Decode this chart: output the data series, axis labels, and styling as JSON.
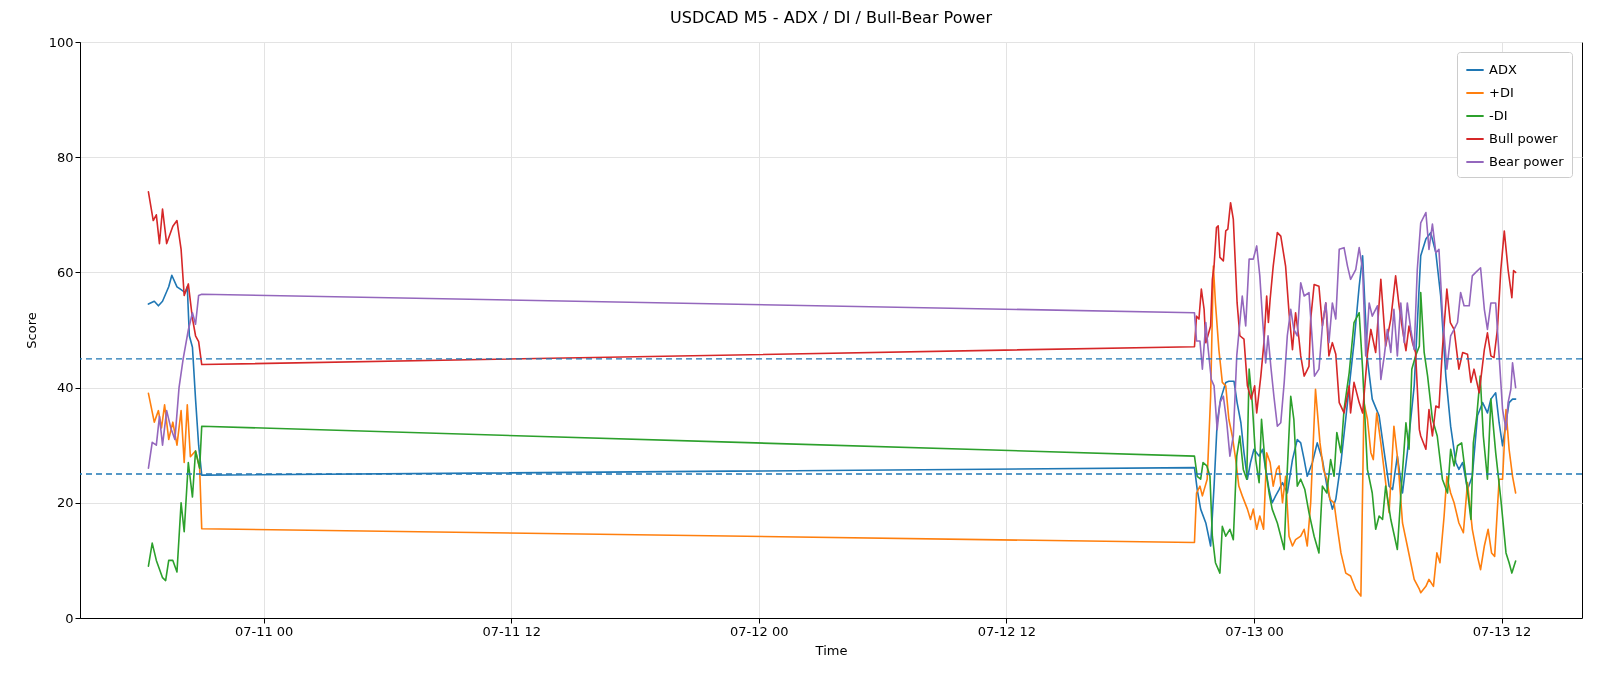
{
  "chart_data": {
    "type": "line",
    "title": "USDCAD M5 - ADX / DI / Bull-Bear Power",
    "xlabel": "Time",
    "ylabel": "Score",
    "xlim": [
      "--07-10T15:06",
      "--07-13T15:54"
    ],
    "xticks": [
      {
        "value": "--07-11T00:00",
        "label": "07-11 00"
      },
      {
        "value": "--07-11T12:00",
        "label": "07-11 12"
      },
      {
        "value": "--07-12T00:00",
        "label": "07-12 00"
      },
      {
        "value": "--07-12T12:00",
        "label": "07-12 12"
      },
      {
        "value": "--07-13T00:00",
        "label": "07-13 00"
      },
      {
        "value": "--07-13T12:00",
        "label": "07-13 12"
      }
    ],
    "ylim": [
      0,
      100
    ],
    "yticks": [
      0,
      20,
      40,
      60,
      80,
      100
    ],
    "grid": true,
    "legend": "top right",
    "line_style": "solid",
    "ref_lines": [
      {
        "axis": "y",
        "value": 45,
        "color": "#1f77b4",
        "line_style": "dashed"
      },
      {
        "axis": "y",
        "value": 25,
        "color": "#1f77b4",
        "line_style": "dashed"
      }
    ],
    "series": [
      {
        "name": "ADX",
        "color": "#1f77b4",
        "x": [
          "--07-10T18:25",
          "--07-10T18:42",
          "--07-10T18:54",
          "--07-10T19:06",
          "--07-10T19:24",
          "--07-10T19:33",
          "--07-10T19:48",
          "--07-10T20:00",
          "--07-10T20:12",
          "--07-10T20:18",
          "--07-10T20:24",
          "--07-10T20:33",
          "--07-10T20:42",
          "--07-10T20:51",
          "--07-10T21:00",
          "--07-12T21:07",
          "--07-12T21:15",
          "--07-12T21:25",
          "--07-12T21:40",
          "--07-12T21:54",
          "--07-12T22:04",
          "--07-12T22:13",
          "--07-12T22:23",
          "--07-12T22:38",
          "--07-12T22:47",
          "--07-12T23:02",
          "--07-12T23:11",
          "--07-12T23:22",
          "--07-12T23:31",
          "--07-12T23:41",
          "--07-12T23:50",
          "--07-13T00:00",
          "--07-13T00:15",
          "--07-13T00:25",
          "--07-13T00:34",
          "--07-13T00:44",
          "--07-13T00:53",
          "--07-13T01:03",
          "--07-13T01:13",
          "--07-13T01:23",
          "--07-13T01:37",
          "--07-13T01:52",
          "--07-13T02:06",
          "--07-13T02:16",
          "--07-13T02:26",
          "--07-13T02:35",
          "--07-13T02:50",
          "--07-13T03:04",
          "--07-13T03:19",
          "--07-13T03:34",
          "--07-13T03:48",
          "--07-13T03:58",
          "--07-13T04:13",
          "--07-13T04:32",
          "--07-13T04:51",
          "--07-13T05:06",
          "--07-13T05:16",
          "--07-13T05:30",
          "--07-13T05:44",
          "--07-13T06:04",
          "--07-13T06:19",
          "--07-13T06:33",
          "--07-13T06:43",
          "--07-13T06:57",
          "--07-13T07:12",
          "--07-13T07:26",
          "--07-13T07:46",
          "--07-13T08:05",
          "--07-13T08:20",
          "--07-13T08:34",
          "--07-13T08:49",
          "--07-13T09:03",
          "--07-13T09:18",
          "--07-13T09:32",
          "--07-13T09:47",
          "--07-13T09:56",
          "--07-13T10:07",
          "--07-13T10:21",
          "--07-13T10:35",
          "--07-13T10:50",
          "--07-13T11:05",
          "--07-13T11:19",
          "--07-13T11:29",
          "--07-13T11:43",
          "--07-13T11:53",
          "--07-13T12:03",
          "--07-13T12:13",
          "--07-13T12:22",
          "--07-13T12:32",
          "--07-13T12:41"
        ],
        "values": [
          54.5,
          55,
          54.2,
          55,
          57.5,
          59.5,
          57.5,
          57,
          56.5,
          57.5,
          49,
          47,
          38,
          30,
          24.8,
          26.1,
          22.3,
          18.9,
          16.5,
          12.5,
          22.9,
          33.9,
          38.0,
          40.9,
          41.1,
          41.1,
          37.4,
          33.9,
          28.7,
          24.1,
          27.0,
          29.3,
          28.1,
          29.3,
          25.8,
          22.3,
          20.0,
          21.2,
          22.3,
          23.5,
          21.7,
          27.5,
          31.0,
          30.4,
          27.5,
          24.6,
          27.0,
          30.4,
          27.5,
          22.3,
          18.9,
          20.6,
          27.0,
          37.4,
          47.8,
          57.6,
          62.9,
          44.9,
          38.0,
          35.1,
          28.7,
          22.9,
          22.3,
          28.1,
          21.7,
          28.7,
          40.3,
          62.9,
          65.8,
          66.9,
          63.4,
          55.9,
          42.0,
          33.3,
          27.0,
          25.8,
          27.0,
          22.3,
          24.6,
          35.1,
          37.4,
          35.6,
          38.0,
          39.1,
          33.9,
          29.9,
          33.9,
          37.4,
          38.0,
          38.0
        ]
      },
      {
        "name": "+DI",
        "color": "#ff7f0e",
        "x": [
          "--07-10T18:25",
          "--07-10T18:42",
          "--07-10T18:54",
          "--07-10T19:03",
          "--07-10T19:12",
          "--07-10T19:24",
          "--07-10T19:36",
          "--07-10T19:48",
          "--07-10T20:00",
          "--07-10T20:09",
          "--07-10T20:18",
          "--07-10T20:27",
          "--07-10T20:42",
          "--07-10T20:54",
          "--07-10T21:00",
          "--07-12T21:07",
          "--07-12T21:13",
          "--07-12T21:23",
          "--07-12T21:30",
          "--07-12T21:44",
          "--07-12T21:54",
          "--07-12T22:02",
          "--07-12T22:08",
          "--07-12T22:18",
          "--07-12T22:28",
          "--07-12T22:38",
          "--07-12T22:47",
          "--07-12T22:57",
          "--07-12T23:07",
          "--07-12T23:16",
          "--07-12T23:26",
          "--07-12T23:41",
          "--07-12T23:50",
          "--07-12T23:58",
          "--07-13T00:08",
          "--07-13T00:17",
          "--07-13T00:28",
          "--07-13T00:37",
          "--07-13T00:47",
          "--07-13T00:56",
          "--07-13T01:06",
          "--07-13T01:13",
          "--07-13T01:23",
          "--07-13T01:32",
          "--07-13T01:42",
          "--07-13T01:52",
          "--07-13T02:01",
          "--07-13T02:16",
          "--07-13T02:26",
          "--07-13T02:35",
          "--07-13T02:45",
          "--07-13T02:59",
          "--07-13T03:12",
          "--07-13T03:22",
          "--07-13T03:32",
          "--07-13T03:41",
          "--07-13T03:53",
          "--07-13T04:02",
          "--07-13T04:13",
          "--07-13T04:27",
          "--07-13T04:41",
          "--07-13T04:56",
          "--07-13T05:11",
          "--07-13T05:20",
          "--07-13T05:30",
          "--07-13T05:40",
          "--07-13T05:47",
          "--07-13T05:57",
          "--07-13T06:09",
          "--07-13T06:23",
          "--07-13T06:33",
          "--07-13T06:47",
          "--07-13T06:59",
          "--07-13T07:12",
          "--07-13T07:26",
          "--07-13T07:46",
          "--07-13T08:01",
          "--07-13T08:05",
          "--07-13T08:20",
          "--07-13T08:29",
          "--07-13T08:42",
          "--07-13T08:52",
          "--07-13T09:01",
          "--07-13T09:13",
          "--07-13T09:21",
          "--07-13T09:32",
          "--07-13T09:42",
          "--07-13T09:56",
          "--07-13T10:09",
          "--07-13T10:21",
          "--07-13T10:35",
          "--07-13T10:50",
          "--07-13T10:59",
          "--07-13T11:10",
          "--07-13T11:21",
          "--07-13T11:31",
          "--07-13T11:40",
          "--07-13T11:53",
          "--07-13T12:03",
          "--07-13T12:13",
          "--07-13T12:22",
          "--07-13T12:32",
          "--07-13T12:41"
        ],
        "values": [
          39,
          34,
          36,
          33,
          37,
          31,
          34,
          30,
          36,
          27,
          37,
          28,
          29,
          26,
          15.5,
          13.1,
          21.7,
          22.9,
          21.2,
          24.1,
          38.5,
          61.1,
          54.7,
          46.6,
          40.9,
          40.3,
          34.5,
          31.6,
          27.5,
          22.9,
          21.2,
          18.9,
          17.1,
          18.9,
          15.4,
          17.7,
          15.4,
          28.7,
          27.0,
          22.9,
          25.8,
          26.4,
          20.0,
          24.6,
          14.2,
          12.5,
          13.6,
          14.2,
          15.4,
          12.5,
          20.0,
          39.7,
          30.4,
          25.8,
          24.1,
          20.6,
          20.0,
          15.9,
          11.3,
          7.8,
          7.3,
          5.0,
          3.8,
          37.4,
          34.5,
          28.7,
          27.5,
          35.6,
          30.4,
          23.5,
          18.3,
          33.3,
          27.0,
          16.5,
          12.5,
          6.7,
          5.0,
          4.4,
          5.5,
          6.7,
          5.5,
          11.3,
          9.6,
          17.7,
          24.6,
          21.7,
          20.0,
          16.5,
          14.8,
          23.5,
          15.4,
          10.7,
          8.4,
          12.5,
          15.4,
          11.3,
          10.7,
          24.1,
          24.1,
          36.2,
          29.3,
          24.6,
          21.7
        ]
      },
      {
        "name": "-DI",
        "color": "#2ca02c",
        "x": [
          "--07-10T18:25",
          "--07-10T18:36",
          "--07-10T18:48",
          "--07-10T19:06",
          "--07-10T19:15",
          "--07-10T19:24",
          "--07-10T19:36",
          "--07-10T19:48",
          "--07-10T20:00",
          "--07-10T20:09",
          "--07-10T20:21",
          "--07-10T20:33",
          "--07-10T20:42",
          "--07-10T20:54",
          "--07-10T21:00",
          "--07-12T21:07",
          "--07-12T21:15",
          "--07-12T21:25",
          "--07-12T21:32",
          "--07-12T21:43",
          "--07-12T21:52",
          "--07-12T21:59",
          "--07-12T22:08",
          "--07-12T22:21",
          "--07-12T22:28",
          "--07-12T22:38",
          "--07-12T22:50",
          "--07-12T23:00",
          "--07-12T23:10",
          "--07-12T23:19",
          "--07-12T23:29",
          "--07-12T23:39",
          "--07-12T23:46",
          "--07-12T23:55",
          "--07-13T00:05",
          "--07-13T00:15",
          "--07-13T00:22",
          "--07-13T00:34",
          "--07-13T00:44",
          "--07-13T00:53",
          "--07-13T01:08",
          "--07-13T01:18",
          "--07-13T01:28",
          "--07-13T01:37",
          "--07-13T01:47",
          "--07-13T01:56",
          "--07-13T02:06",
          "--07-13T02:16",
          "--07-13T02:28",
          "--07-13T02:40",
          "--07-13T02:55",
          "--07-13T03:09",
          "--07-13T03:19",
          "--07-13T03:32",
          "--07-13T03:43",
          "--07-13T03:53",
          "--07-13T04:01",
          "--07-13T04:13",
          "--07-13T04:22",
          "--07-13T04:37",
          "--07-13T04:51",
          "--07-13T05:06",
          "--07-13T05:16",
          "--07-13T05:30",
          "--07-13T05:44",
          "--07-13T05:54",
          "--07-13T06:04",
          "--07-13T06:14",
          "--07-13T06:23",
          "--07-13T06:38",
          "--07-13T06:57",
          "--07-13T07:07",
          "--07-13T07:22",
          "--07-13T07:31",
          "--07-13T07:39",
          "--07-13T07:50",
          "--07-13T08:01",
          "--07-13T08:05",
          "--07-13T08:15",
          "--07-13T08:25",
          "--07-13T08:39",
          "--07-13T08:53",
          "--07-13T09:08",
          "--07-13T09:23",
          "--07-13T09:32",
          "--07-13T09:42",
          "--07-13T09:52",
          "--07-13T10:04",
          "--07-13T10:16",
          "--07-13T10:31",
          "--07-13T10:38",
          "--07-13T10:48",
          "--07-13T10:58",
          "--07-13T11:07",
          "--07-13T11:19",
          "--07-13T11:29",
          "--07-13T11:43",
          "--07-13T11:58",
          "--07-13T12:13",
          "--07-13T12:22",
          "--07-13T12:30",
          "--07-13T12:41"
        ],
        "values": [
          9,
          13,
          10,
          7,
          6.5,
          10,
          10,
          8,
          20,
          15,
          27,
          21,
          29,
          26,
          33.3,
          28.1,
          24.6,
          24.1,
          27.0,
          26.4,
          24.6,
          14.2,
          9.6,
          7.8,
          15.9,
          14.2,
          15.4,
          13.6,
          28.1,
          31.6,
          25.8,
          24.1,
          43.2,
          37.4,
          27.5,
          23.5,
          34.5,
          25.8,
          21.7,
          18.9,
          16.5,
          14.2,
          11.9,
          25.8,
          38.5,
          34.5,
          22.9,
          24.1,
          22.3,
          18.3,
          14.2,
          11.3,
          22.9,
          21.7,
          27.5,
          24.6,
          32.2,
          28.7,
          36.2,
          42.6,
          51.3,
          53.0,
          43.2,
          25.8,
          21.7,
          15.4,
          17.7,
          17.1,
          22.9,
          17.1,
          11.9,
          21.2,
          33.9,
          29.3,
          43.2,
          45.5,
          47.2,
          56.5,
          46.1,
          42.0,
          34.5,
          31.6,
          24.1,
          21.7,
          29.3,
          26.4,
          29.9,
          30.4,
          24.6,
          17.1,
          30.4,
          35.1,
          42.0,
          31.6,
          24.1,
          38.0,
          28.7,
          20.6,
          11.3,
          9.6,
          7.8,
          9.9
        ]
      },
      {
        "name": "Bull power",
        "color": "#d62728",
        "x": [
          "--07-10T18:25",
          "--07-10T18:39",
          "--07-10T18:48",
          "--07-10T18:57",
          "--07-10T19:06",
          "--07-10T19:18",
          "--07-10T19:36",
          "--07-10T19:48",
          "--07-10T20:00",
          "--07-10T20:09",
          "--07-10T20:21",
          "--07-10T20:33",
          "--07-10T20:42",
          "--07-10T20:51",
          "--07-10T21:00",
          "--07-12T21:07",
          "--07-12T21:13",
          "--07-12T21:20",
          "--07-12T21:27",
          "--07-12T21:35",
          "--07-12T21:40",
          "--07-12T21:46",
          "--07-12T21:54",
          "--07-12T21:59",
          "--07-12T22:04",
          "--07-12T22:11",
          "--07-12T22:16",
          "--07-12T22:21",
          "--07-12T22:31",
          "--07-12T22:38",
          "--07-12T22:44",
          "--07-12T22:52",
          "--07-12T23:00",
          "--07-12T23:11",
          "--07-12T23:19",
          "--07-12T23:31",
          "--07-12T23:41",
          "--07-12T23:52",
          "--07-13T00:02",
          "--07-13T00:08",
          "--07-13T00:20",
          "--07-13T00:29",
          "--07-13T00:37",
          "--07-13T00:42",
          "--07-13T00:47",
          "--07-13T00:56",
          "--07-13T01:08",
          "--07-13T01:18",
          "--07-13T01:32",
          "--07-13T01:42",
          "--07-13T01:52",
          "--07-13T02:01",
          "--07-13T02:11",
          "--07-13T02:16",
          "--07-13T02:26",
          "--07-13T02:40",
          "--07-13T02:45",
          "--07-13T02:55",
          "--07-13T03:09",
          "--07-13T03:19",
          "--07-13T03:29",
          "--07-13T03:38",
          "--07-13T03:48",
          "--07-13T03:58",
          "--07-13T04:08",
          "--07-13T04:22",
          "--07-13T04:37",
          "--07-13T04:41",
          "--07-13T04:51",
          "--07-13T05:06",
          "--07-13T05:16",
          "--07-13T05:30",
          "--07-13T05:40",
          "--07-13T05:54",
          "--07-13T06:09",
          "--07-13T06:23",
          "--07-13T06:38",
          "--07-13T06:52",
          "--07-13T07:02",
          "--07-13T07:12",
          "--07-13T07:22",
          "--07-13T07:31",
          "--07-13T07:41",
          "--07-13T07:50",
          "--07-13T08:01",
          "--07-13T08:05",
          "--07-13T08:20",
          "--07-13T08:29",
          "--07-13T08:39",
          "--07-13T08:49",
          "--07-13T08:58",
          "--07-13T09:08",
          "--07-13T09:21",
          "--07-13T09:31",
          "--07-13T09:42",
          "--07-13T09:56",
          "--07-13T10:07",
          "--07-13T10:21",
          "--07-13T10:31",
          "--07-13T10:40",
          "--07-13T10:55",
          "--07-13T11:10",
          "--07-13T11:19",
          "--07-13T11:29",
          "--07-13T11:38",
          "--07-13T11:48",
          "--07-13T11:58",
          "--07-13T12:08",
          "--07-13T12:19",
          "--07-13T12:30",
          "--07-13T12:35",
          "--07-13T12:41"
        ],
        "values": [
          74,
          69,
          70,
          65,
          71,
          65,
          68,
          69,
          64,
          56,
          58,
          52,
          49,
          48,
          44,
          47.1,
          52.4,
          51.9,
          57.1,
          53.6,
          47.8,
          49.0,
          50.7,
          58.8,
          61.1,
          67.8,
          68.1,
          62.6,
          62.0,
          67.2,
          67.5,
          72.1,
          69.2,
          54.7,
          49.0,
          48.4,
          40.3,
          38.0,
          40.3,
          35.6,
          42.0,
          47.8,
          55.9,
          51.3,
          55.3,
          61.1,
          66.9,
          66.3,
          61.1,
          53.0,
          46.6,
          53.0,
          48.4,
          45.5,
          42.0,
          43.7,
          51.9,
          57.9,
          57.6,
          50.7,
          54.7,
          45.5,
          47.8,
          45.8,
          37.4,
          35.6,
          40.3,
          35.6,
          40.9,
          37.4,
          35.6,
          45.8,
          50.1,
          46.1,
          58.8,
          47.2,
          51.9,
          59.4,
          54.2,
          50.1,
          46.4,
          50.7,
          47.8,
          46.1,
          32.7,
          31.6,
          29.3,
          36.2,
          31.6,
          36.8,
          36.5,
          46.6,
          57.1,
          51.3,
          50.1,
          43.2,
          46.1,
          45.8,
          40.9,
          43.2,
          39.1,
          46.6,
          49.5,
          45.5,
          45.2,
          50.1,
          60.5,
          67.2,
          60.5,
          55.6,
          60.3,
          60.0
        ]
      },
      {
        "name": "Bear power",
        "color": "#9467bd",
        "x": [
          "--07-10T18:25",
          "--07-10T18:36",
          "--07-10T18:48",
          "--07-10T18:57",
          "--07-10T19:06",
          "--07-10T19:18",
          "--07-10T19:30",
          "--07-10T19:42",
          "--07-10T19:54",
          "--07-10T20:06",
          "--07-10T20:21",
          "--07-10T20:33",
          "--07-10T20:42",
          "--07-10T20:51",
          "--07-10T21:00",
          "--07-12T21:07",
          "--07-12T21:13",
          "--07-12T21:23",
          "--07-12T21:30",
          "--07-12T21:40",
          "--07-12T21:46",
          "--07-12T21:56",
          "--07-12T22:04",
          "--07-12T22:13",
          "--07-12T22:21",
          "--07-12T22:31",
          "--07-12T22:41",
          "--07-12T22:50",
          "--07-12T23:00",
          "--07-12T23:10",
          "--07-12T23:26",
          "--07-12T23:36",
          "--07-12T23:46",
          "--07-12T23:58",
          "--07-13T00:08",
          "--07-13T00:17",
          "--07-13T00:25",
          "--07-13T00:34",
          "--07-13T00:41",
          "--07-13T00:49",
          "--07-13T00:58",
          "--07-13T01:08",
          "--07-13T01:18",
          "--07-13T01:28",
          "--07-13T01:37",
          "--07-13T01:47",
          "--07-13T01:56",
          "--07-13T02:06",
          "--07-13T02:16",
          "--07-13T02:26",
          "--07-13T02:40",
          "--07-13T02:50",
          "--07-13T02:56",
          "--07-13T03:09",
          "--07-13T03:19",
          "--07-13T03:29",
          "--07-13T03:38",
          "--07-13T03:48",
          "--07-13T03:58",
          "--07-13T04:08",
          "--07-13T04:22",
          "--07-13T04:32",
          "--07-13T04:41",
          "--07-13T04:56",
          "--07-13T05:06",
          "--07-13T05:16",
          "--07-13T05:25",
          "--07-13T05:35",
          "--07-13T05:44",
          "--07-13T05:59",
          "--07-13T06:09",
          "--07-13T06:19",
          "--07-13T06:28",
          "--07-13T06:38",
          "--07-13T06:47",
          "--07-13T06:57",
          "--07-13T07:07",
          "--07-13T07:17",
          "--07-13T07:26",
          "--07-13T07:36",
          "--07-13T07:46",
          "--07-13T07:55",
          "--07-13T08:05",
          "--07-13T08:20",
          "--07-13T08:29",
          "--07-13T08:39",
          "--07-13T08:49",
          "--07-13T08:58",
          "--07-13T09:08",
          "--07-13T09:21",
          "--07-13T09:32",
          "--07-13T09:42",
          "--07-13T09:52",
          "--07-13T10:01",
          "--07-13T10:11",
          "--07-13T10:26",
          "--07-13T10:35",
          "--07-13T10:45",
          "--07-13T10:59",
          "--07-13T11:10",
          "--07-13T11:19",
          "--07-13T11:29",
          "--07-13T11:43",
          "--07-13T11:53",
          "--07-13T12:03",
          "--07-13T12:13",
          "--07-13T12:19",
          "--07-13T12:27",
          "--07-13T12:32",
          "--07-13T12:41"
        ],
        "values": [
          26,
          30.5,
          30,
          35,
          30,
          36,
          33,
          31,
          40,
          45,
          50,
          53,
          51,
          56,
          56.2,
          53.0,
          48.1,
          48.1,
          43.2,
          51.3,
          47.2,
          41.4,
          40.3,
          32.7,
          37.4,
          38.5,
          33.9,
          28.1,
          31.6,
          45.5,
          55.9,
          50.7,
          62.3,
          62.3,
          64.6,
          59.4,
          51.9,
          44.3,
          49.0,
          43.7,
          38.5,
          33.3,
          33.9,
          40.9,
          49.0,
          53.6,
          50.1,
          49.0,
          58.2,
          55.9,
          56.5,
          47.8,
          42.0,
          43.2,
          50.7,
          54.7,
          47.8,
          54.7,
          51.9,
          64.0,
          64.3,
          61.1,
          58.8,
          60.5,
          64.3,
          60.5,
          45.5,
          54.7,
          52.4,
          54.2,
          41.4,
          45.5,
          50.1,
          46.1,
          53.6,
          45.5,
          54.7,
          47.8,
          54.7,
          50.1,
          46.6,
          60.5,
          68.6,
          70.4,
          64.0,
          68.4,
          63.4,
          64.0,
          53.0,
          43.2,
          49.0,
          50.1,
          51.3,
          56.5,
          54.2,
          54.2,
          59.4,
          60.0,
          60.8,
          53.6,
          50.1,
          54.7,
          54.7,
          45.5,
          36.2,
          32.7,
          37.4,
          39.7,
          44.3,
          40.0
        ]
      }
    ]
  }
}
